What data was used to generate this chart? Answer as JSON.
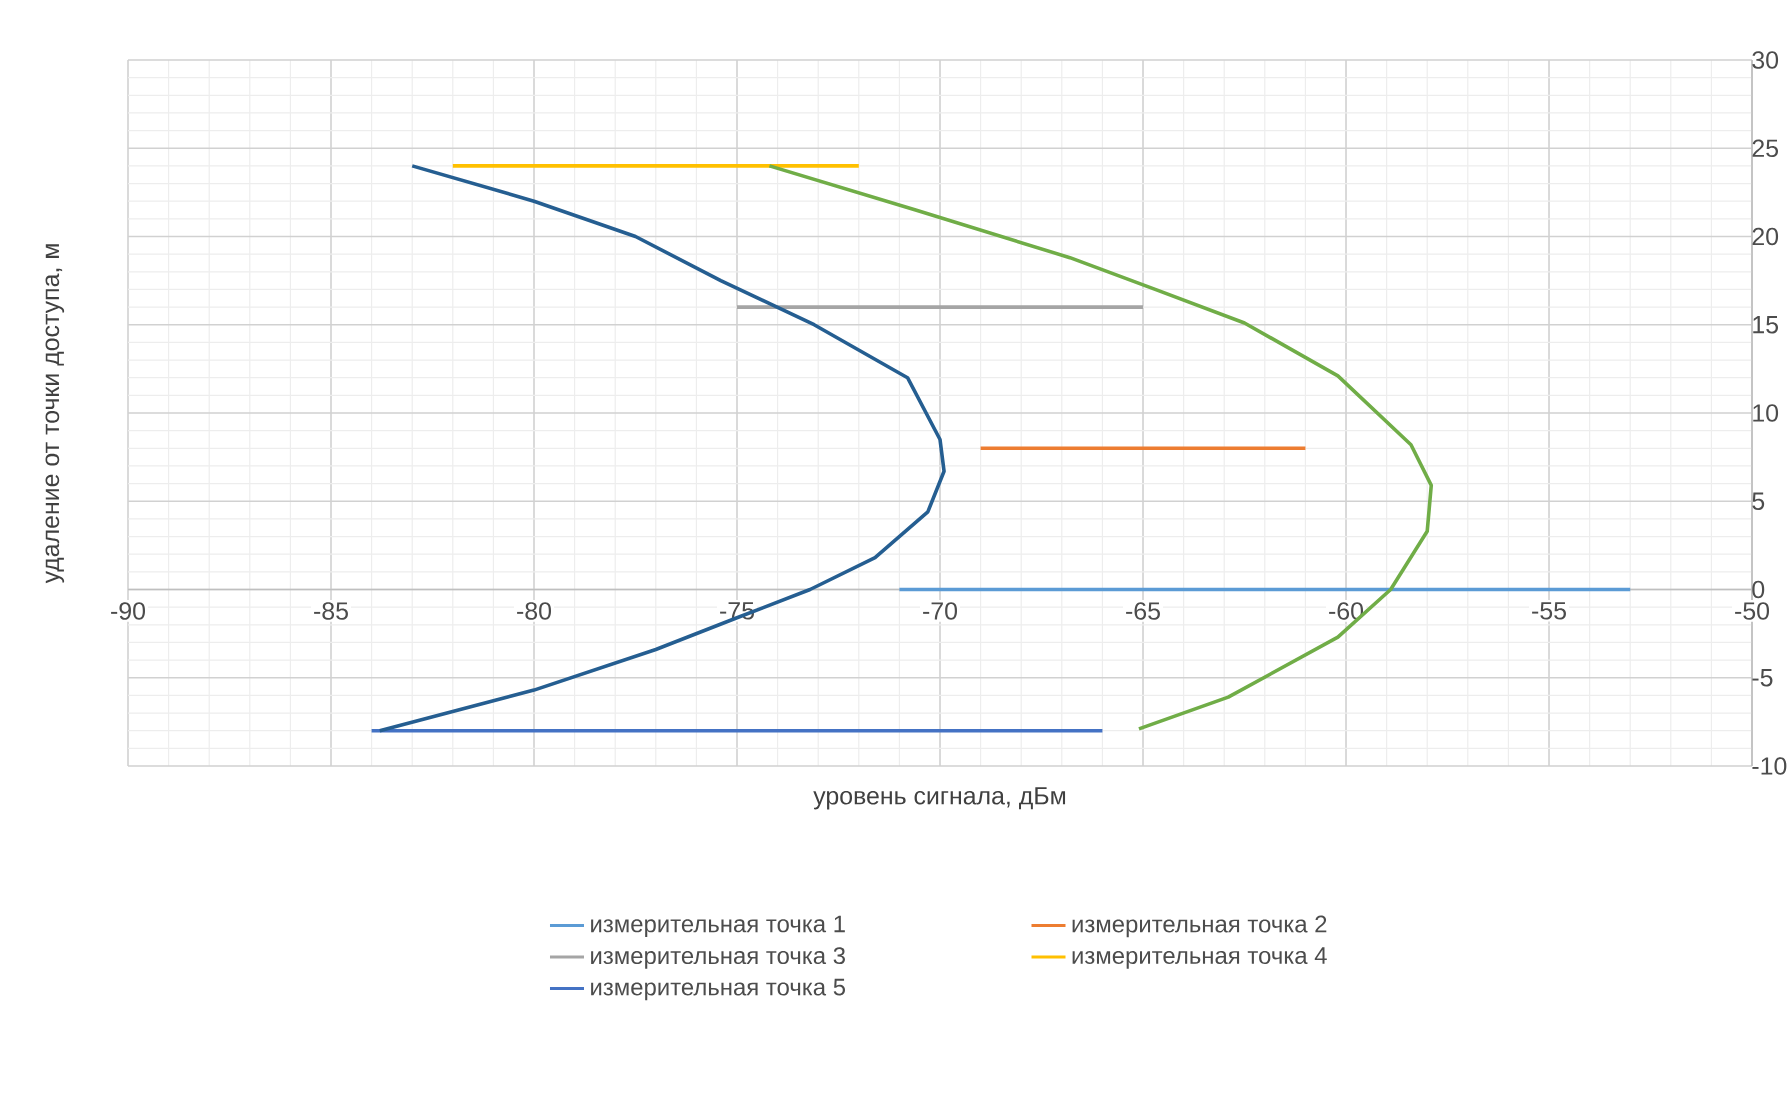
{
  "chart_data": {
    "type": "line",
    "xlabel": "уровень сигнала, дБм",
    "ylabel": "удаление от точки доступа, м",
    "xlim": [
      -90,
      -50
    ],
    "ylim": [
      -10,
      30
    ],
    "xticks": [
      -90,
      -85,
      -80,
      -75,
      -70,
      -65,
      -60,
      -55,
      -50
    ],
    "yticks": [
      -10,
      -5,
      0,
      5,
      10,
      15,
      20,
      25,
      30
    ],
    "grid": true,
    "legend": "bottom",
    "series": [
      {
        "name": "измерительная точка 1",
        "color": "#5b9bd5",
        "x": [
          -71,
          -53
        ],
        "values": [
          0,
          0
        ]
      },
      {
        "name": "измерительная точка 2",
        "color": "#ed7d31",
        "x": [
          -69,
          -61
        ],
        "values": [
          8,
          8
        ]
      },
      {
        "name": "измерительная точка 3",
        "color": "#a5a5a5",
        "x": [
          -75,
          -65
        ],
        "values": [
          16,
          16
        ]
      },
      {
        "name": "измерительная точка 4",
        "color": "#ffc000",
        "x": [
          -82,
          -72
        ],
        "values": [
          24,
          24
        ]
      },
      {
        "name": "измерительная точка 5",
        "color": "#4472c4",
        "x": [
          -84,
          -66
        ],
        "values": [
          -8,
          -8
        ]
      },
      {
        "color": "#255e91",
        "x": [
          -83.8,
          -80,
          -77,
          -75,
          -73.2,
          -71.6,
          -70.3,
          -69.9,
          -70,
          -70.8,
          -73.1,
          -75.4,
          -77.5,
          -80,
          -83
        ],
        "values": [
          -8,
          -5.7,
          -3.4,
          -1.6,
          0,
          1.8,
          4.4,
          6.7,
          8.5,
          12,
          15,
          17.5,
          20,
          22,
          24
        ]
      },
      {
        "color": "#70ad47",
        "x": [
          -65.1,
          -62.9,
          -60.2,
          -58.9,
          -58,
          -57.9,
          -58.4,
          -60.2,
          -62.5,
          -64.7,
          -66.8,
          -70.6,
          -74.2
        ],
        "values": [
          -7.9,
          -6.1,
          -2.7,
          0,
          3.3,
          5.9,
          8.2,
          12.1,
          15.1,
          17,
          18.8,
          21.5,
          24
        ]
      }
    ]
  }
}
